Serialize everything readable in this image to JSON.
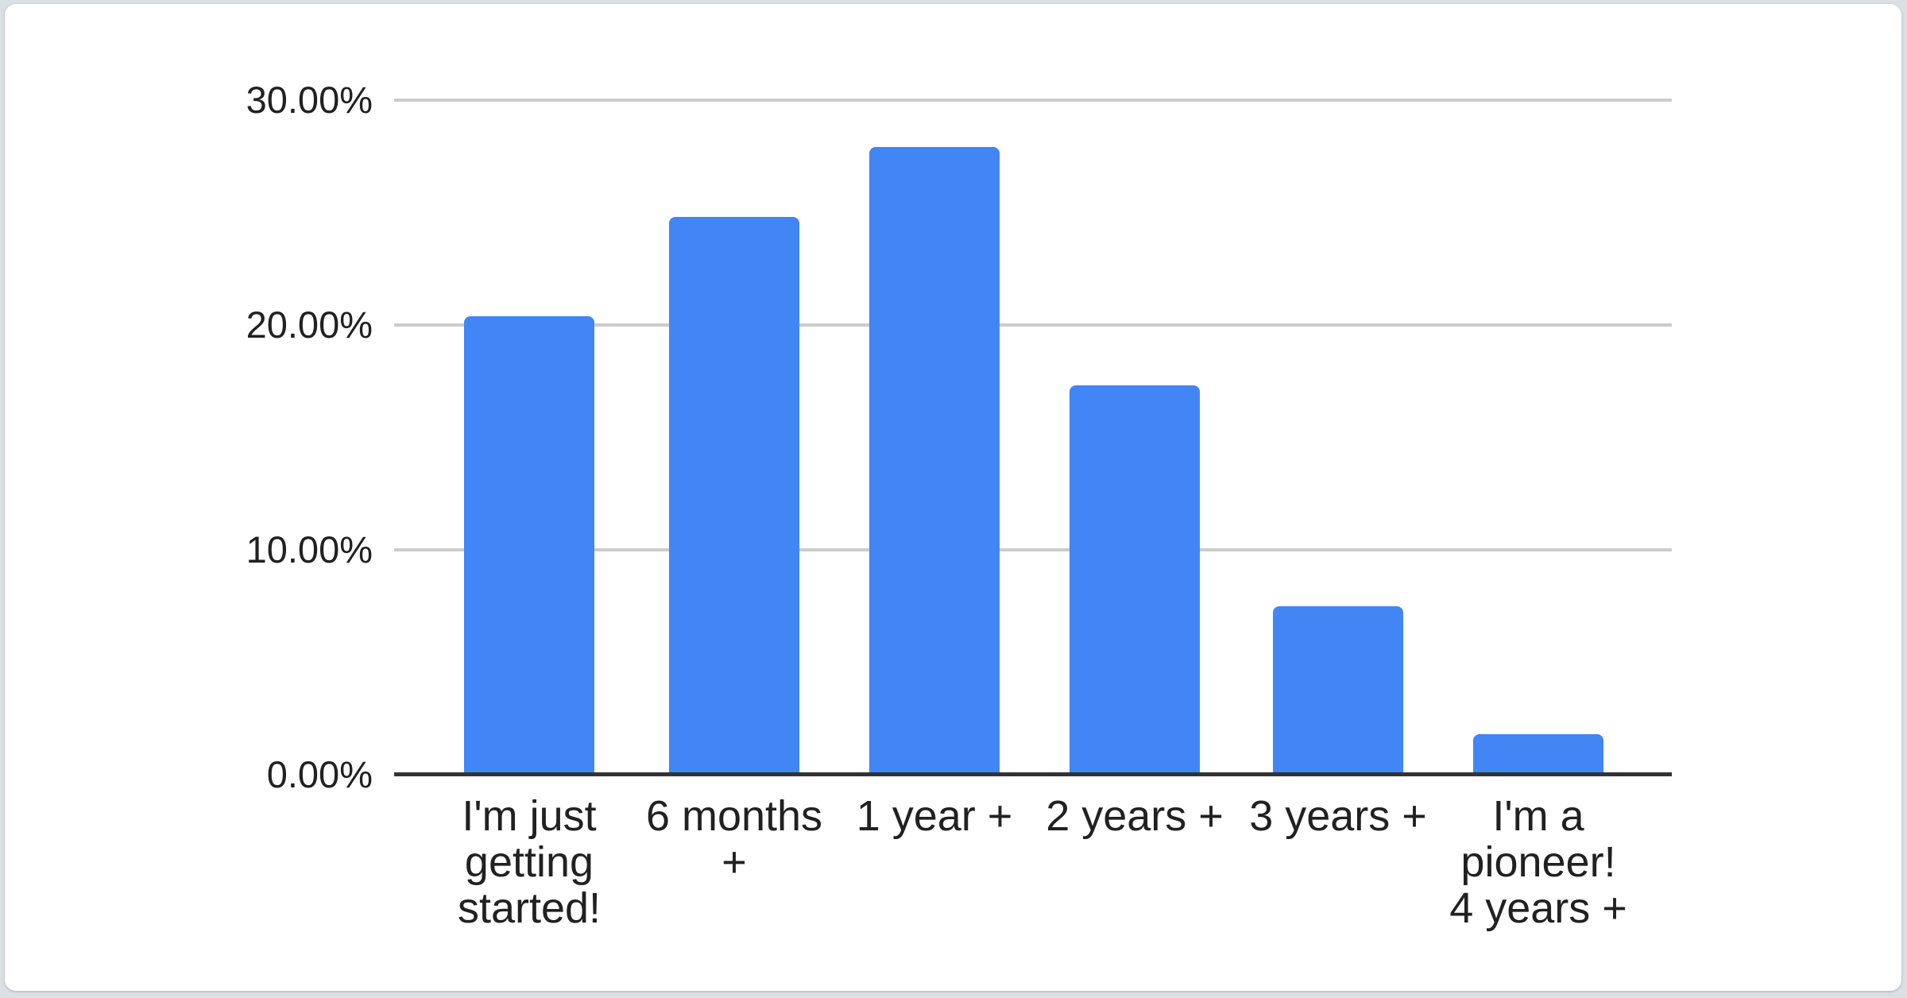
{
  "colors": {
    "page_bg": "#dbe0e4",
    "card_bg": "#ffffff",
    "bar": "#4285f4",
    "gridline": "#cccccc",
    "axis": "#333333",
    "text": "#212121"
  },
  "chart_data": {
    "type": "bar",
    "title": "",
    "xlabel": "",
    "ylabel": "",
    "categories": [
      "I'm just getting started!",
      "6 months +",
      "1 year +",
      "2 years +",
      "3 years +",
      "I'm a pioneer! 4 years +"
    ],
    "category_display": [
      "I'm just\ngetting\nstarted!",
      "6 months\n+",
      "1 year +",
      "2 years +",
      "3 years +",
      "I'm a\npioneer!\n4 years +"
    ],
    "values": [
      20.4,
      24.8,
      27.9,
      17.3,
      7.5,
      1.8
    ],
    "value_unit": "percent",
    "ylim": [
      0,
      30
    ],
    "y_ticks": [
      {
        "value": 0,
        "label": "0.00%"
      },
      {
        "value": 10,
        "label": "10.00%"
      },
      {
        "value": 20,
        "label": "20.00%"
      },
      {
        "value": 30,
        "label": "30.00%"
      }
    ],
    "grid": true,
    "legend": false
  }
}
